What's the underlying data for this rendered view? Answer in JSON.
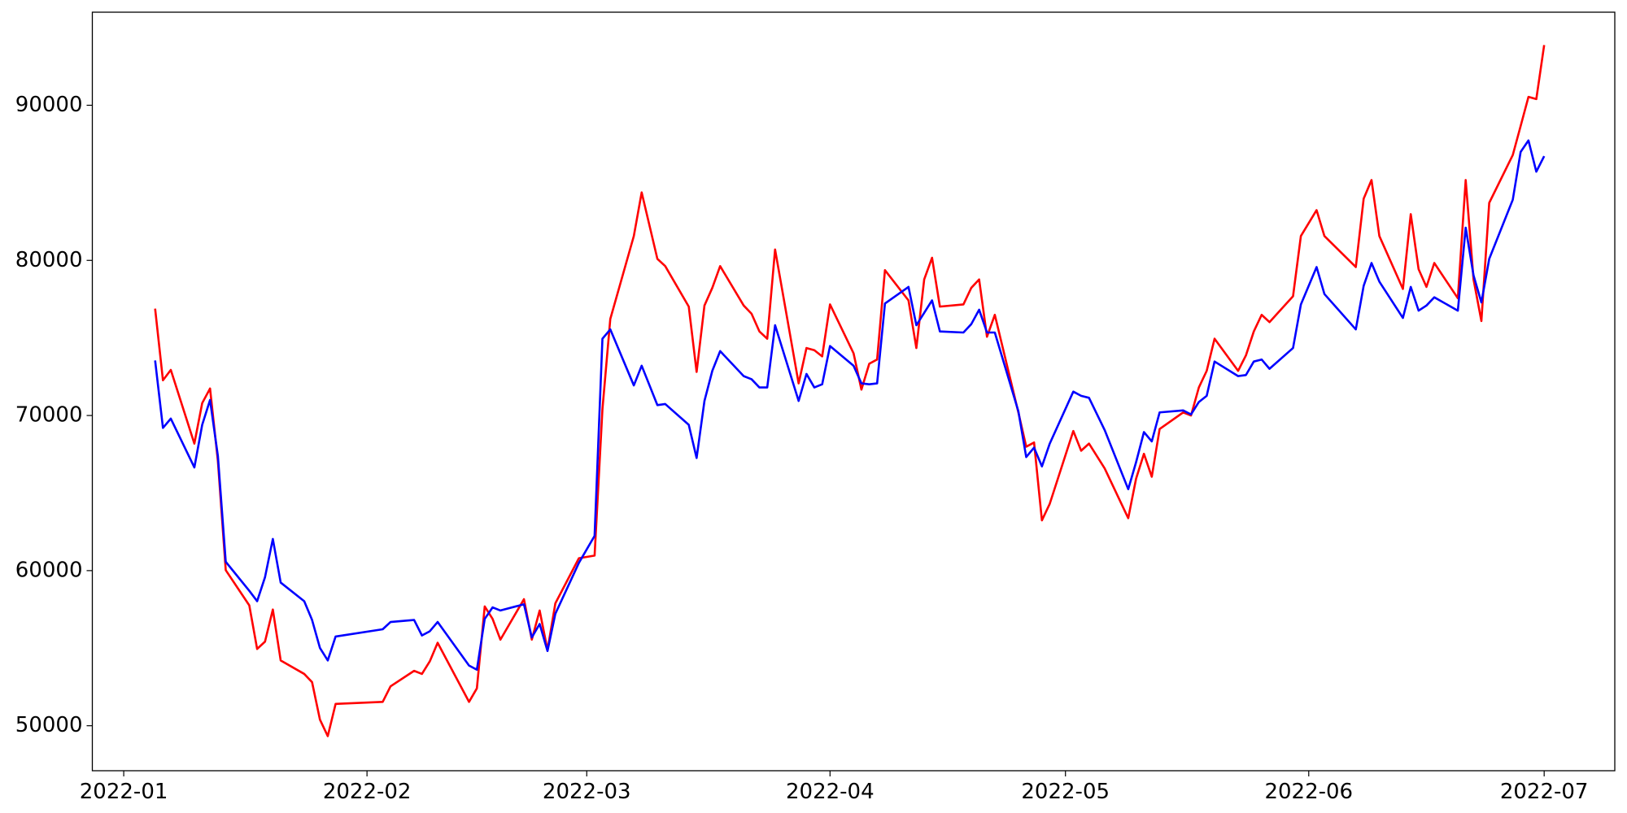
{
  "chart_data": {
    "type": "line",
    "x": [
      "2022-01-05",
      "2022-01-06",
      "2022-01-07",
      "2022-01-10",
      "2022-01-11",
      "2022-01-12",
      "2022-01-13",
      "2022-01-14",
      "2022-01-17",
      "2022-01-18",
      "2022-01-19",
      "2022-01-20",
      "2022-01-21",
      "2022-01-24",
      "2022-01-25",
      "2022-01-26",
      "2022-01-27",
      "2022-01-28",
      "2022-02-03",
      "2022-02-04",
      "2022-02-07",
      "2022-02-08",
      "2022-02-09",
      "2022-02-10",
      "2022-02-14",
      "2022-02-15",
      "2022-02-16",
      "2022-02-17",
      "2022-02-18",
      "2022-02-21",
      "2022-02-22",
      "2022-02-23",
      "2022-02-24",
      "2022-02-25",
      "2022-02-28",
      "2022-03-02",
      "2022-03-03",
      "2022-03-04",
      "2022-03-07",
      "2022-03-08",
      "2022-03-10",
      "2022-03-11",
      "2022-03-14",
      "2022-03-15",
      "2022-03-16",
      "2022-03-17",
      "2022-03-18",
      "2022-03-21",
      "2022-03-22",
      "2022-03-23",
      "2022-03-24",
      "2022-03-25",
      "2022-03-28",
      "2022-03-29",
      "2022-03-30",
      "2022-03-31",
      "2022-04-01",
      "2022-04-04",
      "2022-04-05",
      "2022-04-06",
      "2022-04-07",
      "2022-04-08",
      "2022-04-11",
      "2022-04-12",
      "2022-04-13",
      "2022-04-14",
      "2022-04-15",
      "2022-04-18",
      "2022-04-19",
      "2022-04-20",
      "2022-04-21",
      "2022-04-22",
      "2022-04-25",
      "2022-04-26",
      "2022-04-27",
      "2022-04-28",
      "2022-04-29",
      "2022-05-02",
      "2022-05-03",
      "2022-05-04",
      "2022-05-06",
      "2022-05-09",
      "2022-05-10",
      "2022-05-11",
      "2022-05-12",
      "2022-05-13",
      "2022-05-16",
      "2022-05-17",
      "2022-05-18",
      "2022-05-19",
      "2022-05-20",
      "2022-05-23",
      "2022-05-24",
      "2022-05-25",
      "2022-05-26",
      "2022-05-27",
      "2022-05-30",
      "2022-05-31",
      "2022-06-02",
      "2022-06-03",
      "2022-06-07",
      "2022-06-08",
      "2022-06-09",
      "2022-06-10",
      "2022-06-13",
      "2022-06-14",
      "2022-06-15",
      "2022-06-16",
      "2022-06-17",
      "2022-06-20",
      "2022-06-21",
      "2022-06-22",
      "2022-06-23",
      "2022-06-24",
      "2022-06-27",
      "2022-06-28",
      "2022-06-29",
      "2022-06-30",
      "2022-07-01"
    ],
    "series": [
      {
        "color": "#ff0000",
        "values": [
          76890,
          72270,
          72940,
          68190,
          70800,
          71740,
          67060,
          60030,
          57760,
          54950,
          55420,
          57490,
          54210,
          53340,
          52810,
          50400,
          49330,
          51410,
          51540,
          52540,
          53540,
          53340,
          54150,
          55350,
          51540,
          52410,
          57690,
          56890,
          55550,
          58160,
          55550,
          57430,
          54880,
          57890,
          60800,
          60970,
          70400,
          76220,
          81570,
          84380,
          80100,
          79630,
          77020,
          72810,
          77090,
          78230,
          79630,
          77090,
          76560,
          75420,
          74950,
          80700,
          72070,
          74350,
          74210,
          73810,
          77160,
          74010,
          71670,
          73340,
          73610,
          79370,
          77420,
          74350,
          78770,
          80170,
          77020,
          77160,
          78230,
          78770,
          75080,
          76490,
          70200,
          67990,
          68260,
          63240,
          64310,
          69000,
          67730,
          68190,
          66590,
          63380,
          65930,
          67530,
          66050,
          69130,
          70200,
          70000,
          71810,
          72880,
          74950,
          72880,
          73880,
          75420,
          76490,
          76020,
          77690,
          81570,
          83240,
          81570,
          79570,
          83980,
          85180,
          81570,
          78160,
          82980,
          79430,
          78290,
          79830,
          77560,
          85180,
          78770,
          76090,
          83710,
          86790,
          88660,
          90540,
          90400,
          93880
        ]
      },
      {
        "color": "#0000ff",
        "values": [
          73550,
          69200,
          69800,
          66650,
          69400,
          71000,
          67390,
          60570,
          58700,
          58030,
          59570,
          62040,
          59230,
          58030,
          56820,
          55020,
          54210,
          55750,
          56220,
          56690,
          56820,
          55820,
          56090,
          56690,
          53880,
          53610,
          56890,
          57630,
          57430,
          57830,
          55690,
          56560,
          54820,
          57220,
          60500,
          62240,
          74950,
          75550,
          71940,
          73210,
          70670,
          70740,
          69400,
          67260,
          70940,
          72880,
          74150,
          72540,
          72340,
          71810,
          71810,
          75820,
          70940,
          72680,
          71810,
          72010,
          74480,
          73210,
          72070,
          72010,
          72070,
          77220,
          78290,
          75820,
          76620,
          77420,
          75420,
          75350,
          75890,
          76820,
          75350,
          75350,
          70270,
          67320,
          67930,
          66720,
          68190,
          71540,
          71270,
          71140,
          69060,
          65250,
          66990,
          68930,
          68330,
          70200,
          70330,
          70070,
          70870,
          71270,
          73480,
          72540,
          72610,
          73480,
          73610,
          73010,
          74350,
          77160,
          79570,
          77830,
          75550,
          78360,
          79830,
          78630,
          76290,
          78290,
          76760,
          77090,
          77620,
          76760,
          82110,
          79030,
          77290,
          80100,
          83910,
          86990,
          87730,
          85720,
          86720
        ]
      }
    ],
    "xlim": [
      "2021-12-28",
      "2022-07-10"
    ],
    "xticks": [
      {
        "value": "2022-01-01",
        "label": "2022-01"
      },
      {
        "value": "2022-02-01",
        "label": "2022-02"
      },
      {
        "value": "2022-03-01",
        "label": "2022-03"
      },
      {
        "value": "2022-04-01",
        "label": "2022-04"
      },
      {
        "value": "2022-05-01",
        "label": "2022-05"
      },
      {
        "value": "2022-06-01",
        "label": "2022-06"
      },
      {
        "value": "2022-07-01",
        "label": "2022-07"
      }
    ],
    "ylim": [
      47100,
      96000
    ],
    "yticks": [
      50000,
      60000,
      70000,
      80000,
      90000
    ],
    "grid": false
  }
}
